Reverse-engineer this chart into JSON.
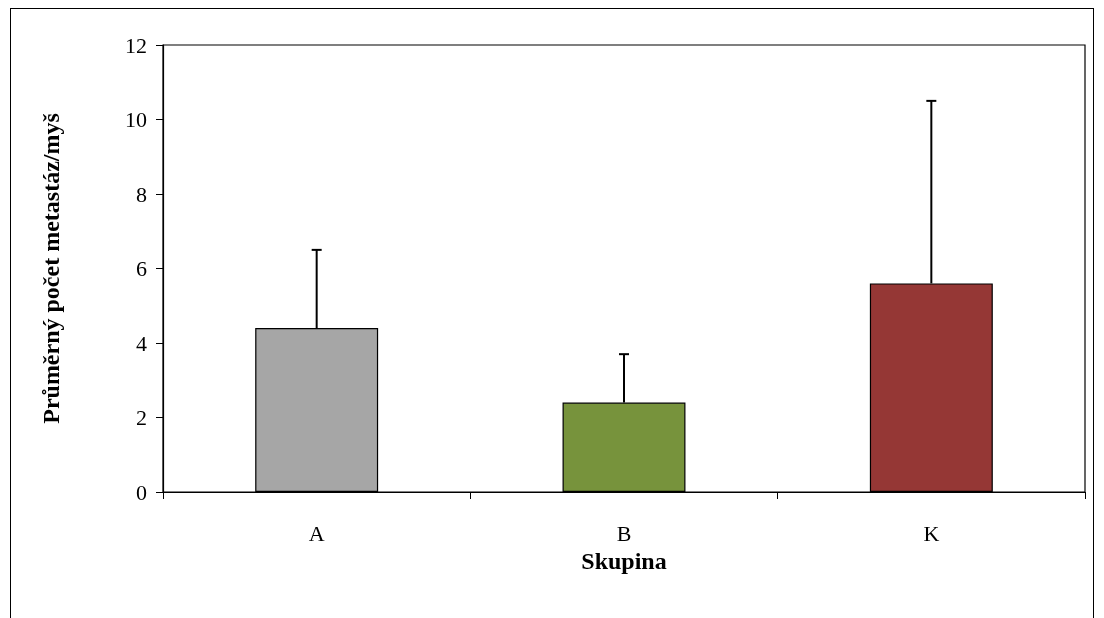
{
  "chart_data": {
    "type": "bar",
    "xlabel": "Skupina",
    "ylabel": "Průměrný počet metastáz/myš",
    "categories": [
      "A",
      "B",
      "K"
    ],
    "values": [
      4.4,
      2.4,
      5.6
    ],
    "colors": [
      "#a6a6a6",
      "#77933c",
      "#953735"
    ],
    "errors": [
      [
        4.4,
        6.5
      ],
      [
        2.4,
        3.7
      ],
      [
        5.6,
        10.5
      ]
    ],
    "ylim": [
      0,
      12
    ],
    "yticks": [
      0,
      2,
      4,
      6,
      8,
      10,
      12
    ]
  }
}
